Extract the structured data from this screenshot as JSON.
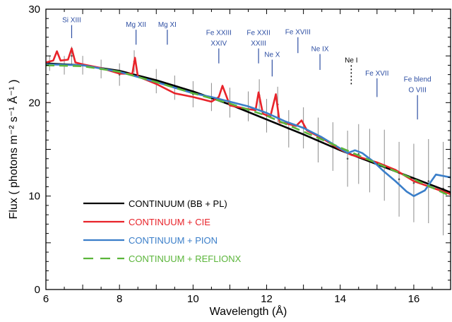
{
  "chart_data": {
    "type": "line",
    "xlabel": "Wavelength (Å)",
    "ylabel": "Flux ( photons m⁻² s⁻¹ Å⁻¹ )",
    "xlim": [
      6,
      17
    ],
    "ylim": [
      0,
      30
    ],
    "x_ticks": [
      6,
      8,
      10,
      12,
      14,
      16
    ],
    "y_ticks": [
      0,
      10,
      20,
      30
    ],
    "grid": false,
    "legend_position": "bottom-left",
    "observed": {
      "x": [
        6.1,
        6.5,
        6.7,
        7.0,
        7.5,
        8.0,
        8.4,
        9.0,
        9.5,
        10.0,
        10.5,
        11.0,
        11.5,
        11.8,
        12.0,
        12.3,
        12.6,
        13.0,
        13.4,
        13.8,
        14.2,
        14.5,
        14.8,
        15.2,
        15.6,
        16.0,
        16.4,
        16.8
      ],
      "y": [
        24.2,
        24.0,
        25.0,
        24.0,
        23.6,
        23.0,
        24.4,
        22.3,
        21.6,
        20.9,
        20.6,
        20.0,
        19.6,
        20.8,
        18.6,
        19.8,
        17.2,
        17.3,
        16.0,
        15.3,
        14.0,
        14.5,
        13.8,
        13.3,
        11.8,
        11.4,
        11.6,
        10.8
      ],
      "err": [
        0.8,
        1.0,
        1.0,
        1.0,
        1.0,
        1.2,
        1.2,
        1.3,
        1.3,
        1.4,
        1.5,
        1.6,
        1.6,
        1.7,
        1.8,
        1.9,
        2.0,
        2.2,
        2.4,
        2.6,
        3.0,
        3.2,
        3.4,
        3.8,
        4.0,
        4.2,
        4.5,
        5.0
      ],
      "color": "#8c8c8c"
    },
    "series": [
      {
        "name": "CONTINUUM (BB + PL)",
        "color": "#000000",
        "dash": "solid",
        "x": [
          6.0,
          7.0,
          8.0,
          9.0,
          10.0,
          11.0,
          12.0,
          13.0,
          14.0,
          15.0,
          16.0,
          17.0
        ],
        "y": [
          24.2,
          24.0,
          23.4,
          22.4,
          21.2,
          19.8,
          18.2,
          16.6,
          14.9,
          13.4,
          11.9,
          10.4
        ]
      },
      {
        "name": "CONTINUUM + CIE",
        "color": "#e8232a",
        "dash": "solid",
        "x": [
          6.0,
          6.2,
          6.3,
          6.4,
          6.6,
          6.7,
          6.8,
          7.0,
          7.5,
          8.0,
          8.35,
          8.42,
          8.5,
          9.0,
          9.5,
          10.0,
          10.5,
          10.7,
          10.8,
          11.0,
          11.5,
          11.7,
          11.78,
          11.9,
          12.1,
          12.25,
          12.35,
          12.5,
          12.8,
          12.95,
          13.1,
          13.5,
          14.0,
          14.3,
          14.5,
          15.0,
          15.5,
          16.0,
          16.5,
          17.0
        ],
        "y": [
          24.3,
          24.5,
          25.5,
          24.5,
          24.6,
          25.8,
          24.3,
          24.1,
          23.7,
          23.1,
          23.1,
          24.8,
          22.8,
          22.0,
          21.0,
          20.6,
          20.1,
          20.6,
          21.8,
          19.7,
          19.3,
          19.2,
          21.1,
          18.8,
          18.5,
          20.9,
          17.9,
          17.8,
          17.5,
          18.1,
          17.0,
          16.2,
          15.0,
          14.4,
          14.2,
          13.6,
          12.8,
          11.6,
          10.9,
          10.2
        ]
      },
      {
        "name": "CONTINUUM + PION",
        "color": "#3a7ec9",
        "dash": "solid",
        "x": [
          6.0,
          7.0,
          8.0,
          9.0,
          9.5,
          10.0,
          10.5,
          11.0,
          11.5,
          12.0,
          12.5,
          13.0,
          13.5,
          14.0,
          14.2,
          14.4,
          14.6,
          14.9,
          15.2,
          15.5,
          15.8,
          16.0,
          16.3,
          16.6,
          17.0
        ],
        "y": [
          24.1,
          24.0,
          23.3,
          22.2,
          21.6,
          21.0,
          20.6,
          20.1,
          19.6,
          18.9,
          18.0,
          17.3,
          16.3,
          15.1,
          14.6,
          14.9,
          14.6,
          13.7,
          12.6,
          11.6,
          10.5,
          10.0,
          10.6,
          12.3,
          12.0
        ]
      },
      {
        "name": "CONTINUUM + REFLIONX",
        "color": "#5bb53a",
        "dash": "dashed",
        "x": [
          6.0,
          7.0,
          8.0,
          9.0,
          10.0,
          11.0,
          12.0,
          13.0,
          14.0,
          15.0,
          16.0,
          17.0
        ],
        "y": [
          24.0,
          23.9,
          23.3,
          22.2,
          21.0,
          19.9,
          18.6,
          16.9,
          15.2,
          13.5,
          11.8,
          10.0
        ]
      }
    ],
    "line_annotations": [
      {
        "lines": [
          "Si XIII"
        ],
        "x": 6.7,
        "marker_top": 28.3,
        "marker_bottom": 26.9,
        "dotted": false,
        "color": "#2e4fa3"
      },
      {
        "lines": [
          "Mg XII"
        ],
        "x": 8.45,
        "marker_top": 27.8,
        "marker_bottom": 26.2,
        "dotted": false,
        "color": "#2e4fa3"
      },
      {
        "lines": [
          "Mg XI"
        ],
        "x": 9.3,
        "marker_top": 27.8,
        "marker_bottom": 26.2,
        "dotted": false,
        "color": "#2e4fa3"
      },
      {
        "lines": [
          "Fe XXIII",
          "XXIV"
        ],
        "x": 10.7,
        "marker_top": 25.8,
        "marker_bottom": 24.2,
        "dotted": false,
        "color": "#2e4fa3"
      },
      {
        "lines": [
          "Fe XXII",
          "XXIII"
        ],
        "x": 11.78,
        "marker_top": 25.8,
        "marker_bottom": 24.2,
        "dotted": false,
        "color": "#2e4fa3"
      },
      {
        "lines": [
          "Fe XVIII"
        ],
        "x": 12.85,
        "marker_top": 27.0,
        "marker_bottom": 25.3,
        "dotted": false,
        "color": "#2e4fa3"
      },
      {
        "lines": [
          "Ne X"
        ],
        "x": 12.15,
        "marker_top": 24.6,
        "marker_bottom": 22.8,
        "dotted": false,
        "color": "#2e4fa3"
      },
      {
        "lines": [
          "Ne IX"
        ],
        "x": 13.45,
        "marker_top": 25.2,
        "marker_bottom": 23.5,
        "dotted": false,
        "color": "#2e4fa3"
      },
      {
        "lines": [
          "Ne I"
        ],
        "x": 14.3,
        "marker_top": 24.0,
        "marker_bottom": 21.8,
        "dotted": true,
        "color": "#000000"
      },
      {
        "lines": [
          "Fe XVII"
        ],
        "x": 15.0,
        "marker_top": 22.6,
        "marker_bottom": 20.6,
        "dotted": false,
        "color": "#2e4fa3"
      },
      {
        "lines": [
          "Fe blend",
          "O VIII"
        ],
        "x": 16.1,
        "marker_top": 20.8,
        "marker_bottom": 18.2,
        "dotted": false,
        "color": "#2e4fa3"
      }
    ]
  }
}
